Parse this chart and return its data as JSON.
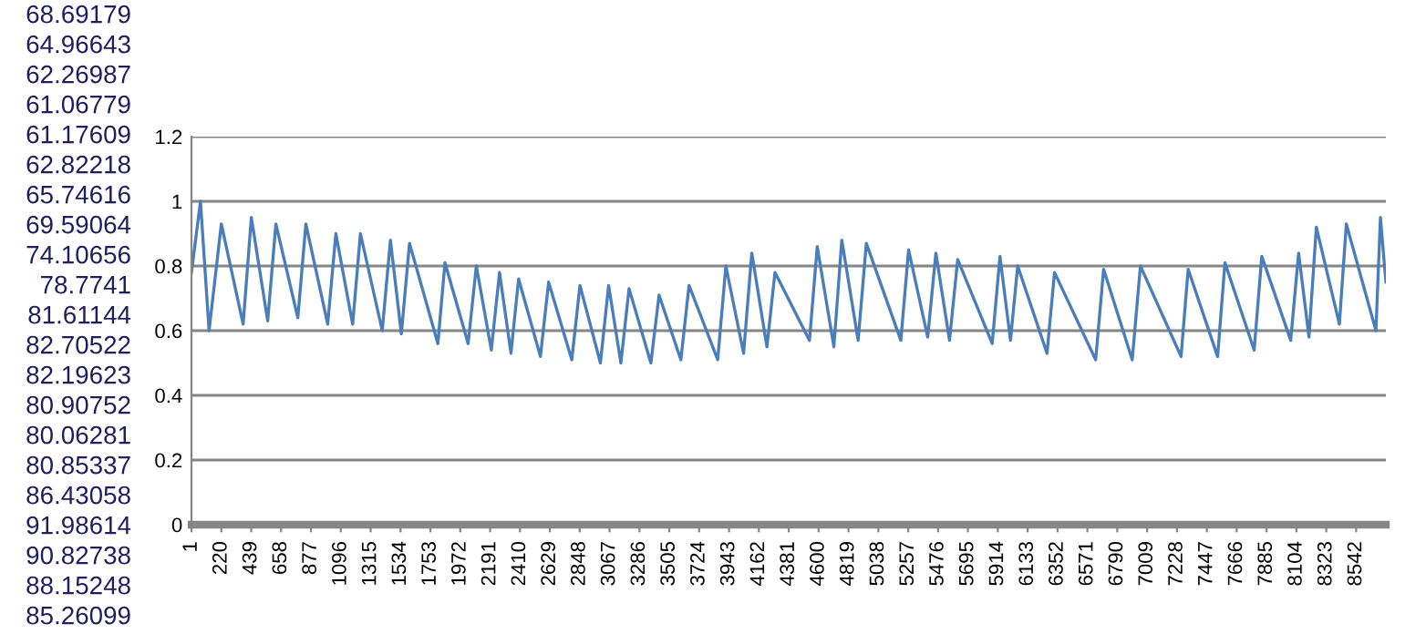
{
  "chart_data": {
    "type": "line",
    "x": [
      1,
      67,
      130,
      220,
      380,
      440,
      560,
      620,
      781,
      840,
      1000,
      1060,
      1183,
      1240,
      1400,
      1460,
      1540,
      1600,
      1808,
      1860,
      2030,
      2090,
      2200,
      2260,
      2344,
      2400,
      2560,
      2620,
      2790,
      2850,
      3000,
      3060,
      3150,
      3210,
      3370,
      3430,
      3590,
      3650,
      3860,
      3920,
      4050,
      4110,
      4221,
      4280,
      4533,
      4590,
      4712,
      4770,
      4890,
      4950,
      5203,
      5260,
      5400,
      5460,
      5560,
      5620,
      5873,
      5930,
      6007,
      6060,
      6275,
      6330,
      6632,
      6690,
      6900,
      6960,
      7258,
      7310,
      7526,
      7580,
      7794,
      7850,
      8062,
      8120,
      8196,
      8250,
      8419,
      8470,
      8687,
      8720,
      8760
    ],
    "series": [
      {
        "color": "#4a7ebb",
        "values": [
          0.78,
          1.0,
          0.6,
          0.93,
          0.62,
          0.95,
          0.63,
          0.93,
          0.64,
          0.93,
          0.62,
          0.9,
          0.62,
          0.9,
          0.6,
          0.88,
          0.59,
          0.87,
          0.56,
          0.81,
          0.56,
          0.8,
          0.54,
          0.78,
          0.53,
          0.76,
          0.52,
          0.75,
          0.51,
          0.74,
          0.5,
          0.74,
          0.5,
          0.73,
          0.5,
          0.71,
          0.51,
          0.74,
          0.51,
          0.8,
          0.53,
          0.84,
          0.55,
          0.78,
          0.57,
          0.86,
          0.55,
          0.88,
          0.57,
          0.87,
          0.57,
          0.85,
          0.58,
          0.84,
          0.57,
          0.82,
          0.56,
          0.83,
          0.57,
          0.8,
          0.53,
          0.78,
          0.51,
          0.79,
          0.51,
          0.8,
          0.52,
          0.79,
          0.52,
          0.81,
          0.54,
          0.83,
          0.57,
          0.84,
          0.58,
          0.92,
          0.62,
          0.93,
          0.6,
          0.95,
          0.75
        ]
      }
    ],
    "xlim": [
      1,
      8760
    ],
    "xticks": [
      1,
      220,
      439,
      658,
      877,
      1096,
      1315,
      1534,
      1753,
      1972,
      2191,
      2410,
      2629,
      2848,
      3067,
      3286,
      3505,
      3724,
      3943,
      4162,
      4381,
      4600,
      4819,
      5038,
      5257,
      5476,
      5695,
      5914,
      6133,
      6352,
      6571,
      6790,
      7009,
      7228,
      7447,
      7666,
      7885,
      8104,
      8323,
      8542
    ],
    "ylim": [
      0,
      1.2
    ],
    "yticks": [
      0,
      0.2,
      0.4,
      0.6,
      0.8,
      1,
      1.2
    ],
    "grid": "y",
    "legend": false,
    "marker": "none",
    "line_style": "solid",
    "annotations": [
      "68.69179",
      "64.96643",
      "62.26987",
      "61.06779",
      "61.17609",
      "62.82218",
      "65.74616",
      "69.59064",
      "74.10656",
      "78.7741",
      "81.61144",
      "82.70522",
      "82.19623",
      "80.90752",
      "80.06281",
      "80.85337",
      "86.43058",
      "91.98614",
      "90.82738",
      "88.15248",
      "85.26099"
    ]
  }
}
